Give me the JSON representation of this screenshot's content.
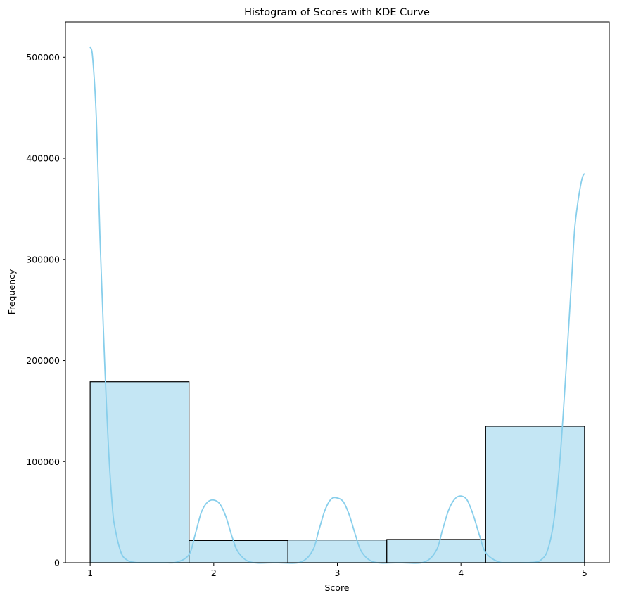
{
  "chart_data": {
    "type": "bar",
    "title": "Histogram of Scores with KDE Curve",
    "xlabel": "Score",
    "ylabel": "Frequency",
    "xlim": [
      0.8,
      5.2
    ],
    "ylim": [
      0,
      535000
    ],
    "x_ticks": [
      1,
      2,
      3,
      4,
      5
    ],
    "x_tick_labels": [
      "1",
      "2",
      "3",
      "4",
      "5"
    ],
    "y_ticks": [
      0,
      100000,
      200000,
      300000,
      400000,
      500000
    ],
    "y_tick_labels": [
      "0",
      "100000",
      "200000",
      "300000",
      "400000",
      "500000"
    ],
    "bins": [
      {
        "start": 1.0,
        "end": 1.8,
        "value": 179000
      },
      {
        "start": 1.8,
        "end": 2.6,
        "value": 22000
      },
      {
        "start": 2.6,
        "end": 3.4,
        "value": 22500
      },
      {
        "start": 3.4,
        "end": 4.2,
        "value": 23000
      },
      {
        "start": 4.2,
        "end": 5.0,
        "value": 135000
      }
    ],
    "kde": {
      "x": [
        1.0,
        1.02,
        1.05,
        1.08,
        1.1,
        1.12,
        1.15,
        1.18,
        1.2,
        1.25,
        1.3,
        1.35,
        1.4,
        1.5,
        1.6,
        1.7,
        1.8,
        1.85,
        1.9,
        1.95,
        2.0,
        2.05,
        2.1,
        2.15,
        2.2,
        2.3,
        2.5,
        2.7,
        2.8,
        2.85,
        2.9,
        2.95,
        3.0,
        3.05,
        3.1,
        3.15,
        3.2,
        3.3,
        3.5,
        3.7,
        3.8,
        3.85,
        3.9,
        3.95,
        4.0,
        4.05,
        4.1,
        4.15,
        4.2,
        4.3,
        4.4,
        4.5,
        4.6,
        4.65,
        4.7,
        4.75,
        4.8,
        4.85,
        4.88,
        4.9,
        4.92,
        4.95,
        4.98,
        5.0
      ],
      "y": [
        510000,
        500000,
        440000,
        320000,
        255000,
        190000,
        110000,
        55000,
        35000,
        10000,
        2500,
        500,
        0,
        0,
        0,
        500,
        8000,
        28000,
        50000,
        60000,
        62000,
        58000,
        45000,
        25000,
        10000,
        500,
        0,
        500,
        12000,
        32000,
        52000,
        63000,
        64000,
        60000,
        46000,
        26000,
        10000,
        500,
        0,
        500,
        12000,
        32000,
        52000,
        63000,
        66000,
        62000,
        47000,
        27000,
        10000,
        1000,
        0,
        0,
        500,
        3000,
        12000,
        40000,
        100000,
        190000,
        250000,
        290000,
        330000,
        360000,
        380000,
        385000
      ]
    },
    "colors": {
      "bar_fill": "#c4e6f4",
      "bar_edge": "#000000",
      "kde_line": "#87ceeb"
    },
    "grid": false,
    "legend": "none"
  }
}
